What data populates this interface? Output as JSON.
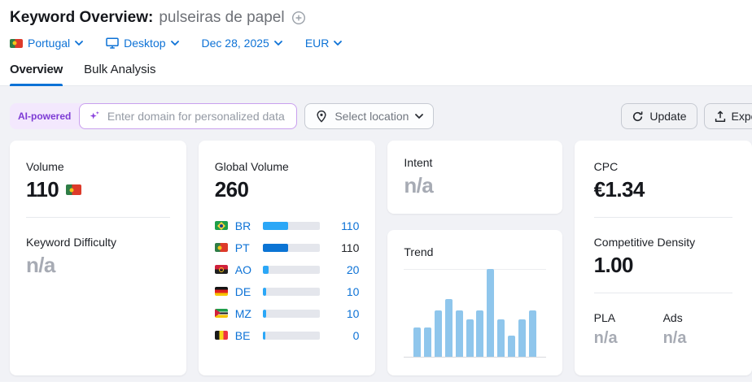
{
  "header": {
    "title": "Keyword Overview:",
    "keyword": "pulseiras de papel"
  },
  "filters": {
    "country": {
      "label": "Portugal",
      "flag": "pt"
    },
    "device": {
      "label": "Desktop"
    },
    "date": {
      "label": "Dec 28, 2025"
    },
    "currency": {
      "label": "EUR"
    }
  },
  "tabs": [
    {
      "label": "Overview",
      "active": true
    },
    {
      "label": "Bulk Analysis",
      "active": false
    }
  ],
  "toolbar": {
    "ai_badge": "AI-powered",
    "domain_placeholder": "Enter domain for personalized data",
    "select_location": "Select location",
    "update": "Update",
    "export": "Export"
  },
  "cards": {
    "volume": {
      "label": "Volume",
      "value": "110",
      "flag": "pt"
    },
    "keyword_difficulty": {
      "label": "Keyword Difficulty",
      "value": "n/a"
    },
    "global_volume": {
      "label": "Global Volume",
      "value": "260",
      "countries": [
        {
          "code": "BR",
          "flag": "br",
          "value": "110",
          "fraction": 0.45,
          "bar_color": "#2ba7f7",
          "value_color": "blue"
        },
        {
          "code": "PT",
          "flag": "pt",
          "value": "110",
          "fraction": 0.45,
          "bar_color": "#0b74d4",
          "value_color": "dark"
        },
        {
          "code": "AO",
          "flag": "ao",
          "value": "20",
          "fraction": 0.1,
          "bar_color": "#2ba7f7",
          "value_color": "blue"
        },
        {
          "code": "DE",
          "flag": "de",
          "value": "10",
          "fraction": 0.06,
          "bar_color": "#2ba7f7",
          "value_color": "blue"
        },
        {
          "code": "MZ",
          "flag": "mz",
          "value": "10",
          "fraction": 0.06,
          "bar_color": "#2ba7f7",
          "value_color": "blue"
        },
        {
          "code": "BE",
          "flag": "be",
          "value": "0",
          "fraction": 0.05,
          "bar_color": "#2ba7f7",
          "value_color": "blue"
        }
      ]
    },
    "intent": {
      "label": "Intent",
      "value": "n/a"
    },
    "trend": {
      "label": "Trend",
      "bars_percent": [
        33,
        33,
        53,
        66,
        53,
        43,
        53,
        100,
        43,
        24,
        43,
        53
      ],
      "bar_color": "#8fc6ec"
    },
    "cpc": {
      "label": "CPC",
      "value": "€1.34"
    },
    "competitive_density": {
      "label": "Competitive Density",
      "value": "1.00"
    },
    "pla": {
      "label": "PLA",
      "value": "n/a"
    },
    "ads": {
      "label": "Ads",
      "value": "n/a"
    }
  },
  "colors": {
    "link_blue": "#0d72d6",
    "ai_purple": "#7d3bd5",
    "page_bg": "#f1f2f6"
  }
}
